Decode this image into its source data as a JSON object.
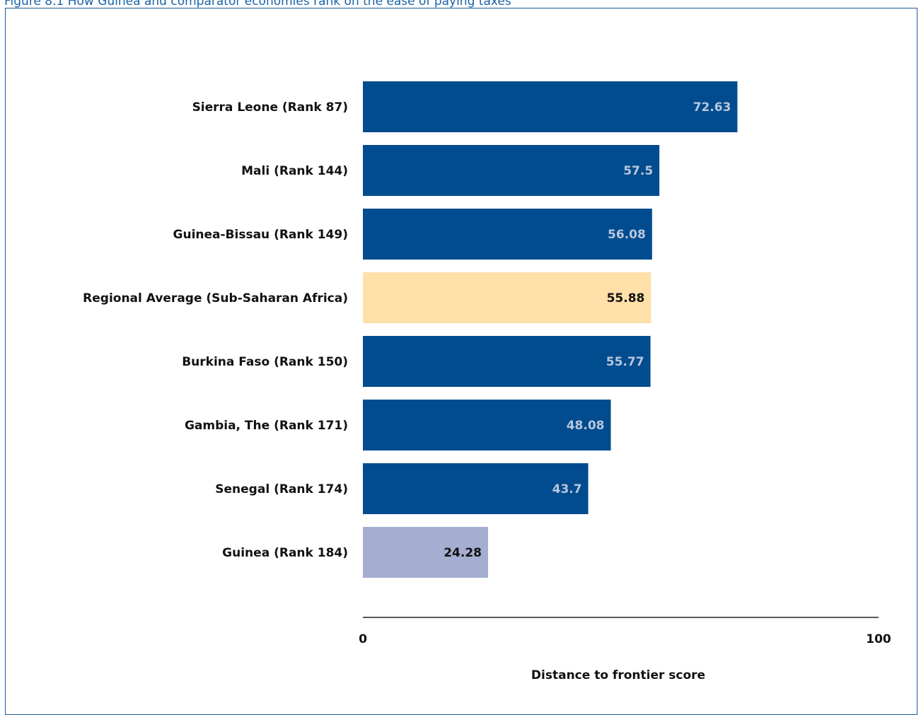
{
  "figure_title": "Figure 8.1 How Guinea and comparator economies rank on the ease of paying taxes",
  "colors": {
    "frame": "#1f5b96",
    "title": "#1a63a8",
    "bar_default": "#004c8f",
    "bar_regional": "#ffe0a8",
    "bar_focus": "#a3aed0",
    "value_on_dark": "#b9c7dd",
    "value_on_light": "#111111"
  },
  "chart_data": {
    "type": "bar",
    "orientation": "horizontal",
    "categories": [
      "Sierra Leone (Rank 87)",
      "Mali (Rank 144)",
      "Guinea-Bissau (Rank 149)",
      "Regional Average (Sub-Saharan Africa)",
      "Burkina Faso (Rank 150)",
      "Gambia, The (Rank 171)",
      "Senegal (Rank 174)",
      "Guinea (Rank 184)"
    ],
    "values": [
      72.63,
      57.5,
      56.08,
      55.88,
      55.77,
      48.08,
      43.7,
      24.28
    ],
    "value_labels": [
      "72.63",
      "57.5",
      "56.08",
      "55.88",
      "55.77",
      "48.08",
      "43.7",
      "24.28"
    ],
    "bar_styles": [
      "default",
      "default",
      "default",
      "regional",
      "default",
      "default",
      "default",
      "focus"
    ],
    "xlabel": "Distance to frontier score",
    "ylabel": "",
    "xlim": [
      0,
      100
    ],
    "x_ticks": [
      "0",
      "100"
    ],
    "grid": false,
    "legend": "none"
  }
}
